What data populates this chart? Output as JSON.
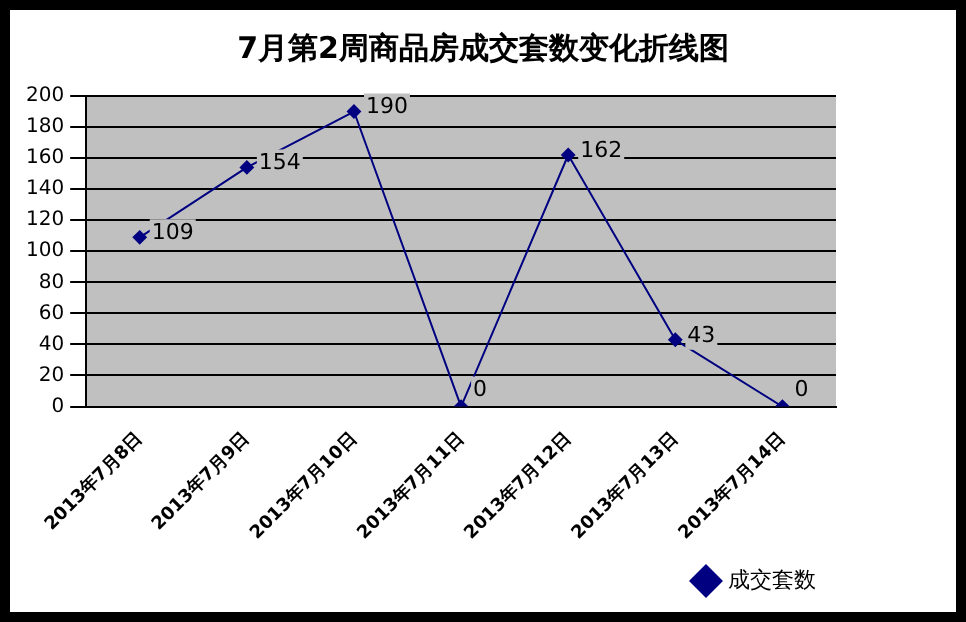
{
  "chart_data": {
    "type": "line",
    "title": "7月第2周商品房成交套数变化折线图",
    "categories": [
      "2013年7月8日",
      "2013年7月9日",
      "2013年7月10日",
      "2013年7月11日",
      "2013年7月12日",
      "2013年7月13日",
      "2013年7月14日"
    ],
    "series": [
      {
        "name": "成交套数",
        "color": "#000080",
        "values": [
          109,
          154,
          190,
          0,
          162,
          43,
          0
        ]
      }
    ],
    "ylim": [
      0,
      200
    ],
    "yticks": [
      0,
      20,
      40,
      60,
      80,
      100,
      120,
      140,
      160,
      180,
      200
    ],
    "grid": "y",
    "legend": "bottom right",
    "marker": "diamond",
    "line_style": "solid",
    "data_labels": true
  }
}
